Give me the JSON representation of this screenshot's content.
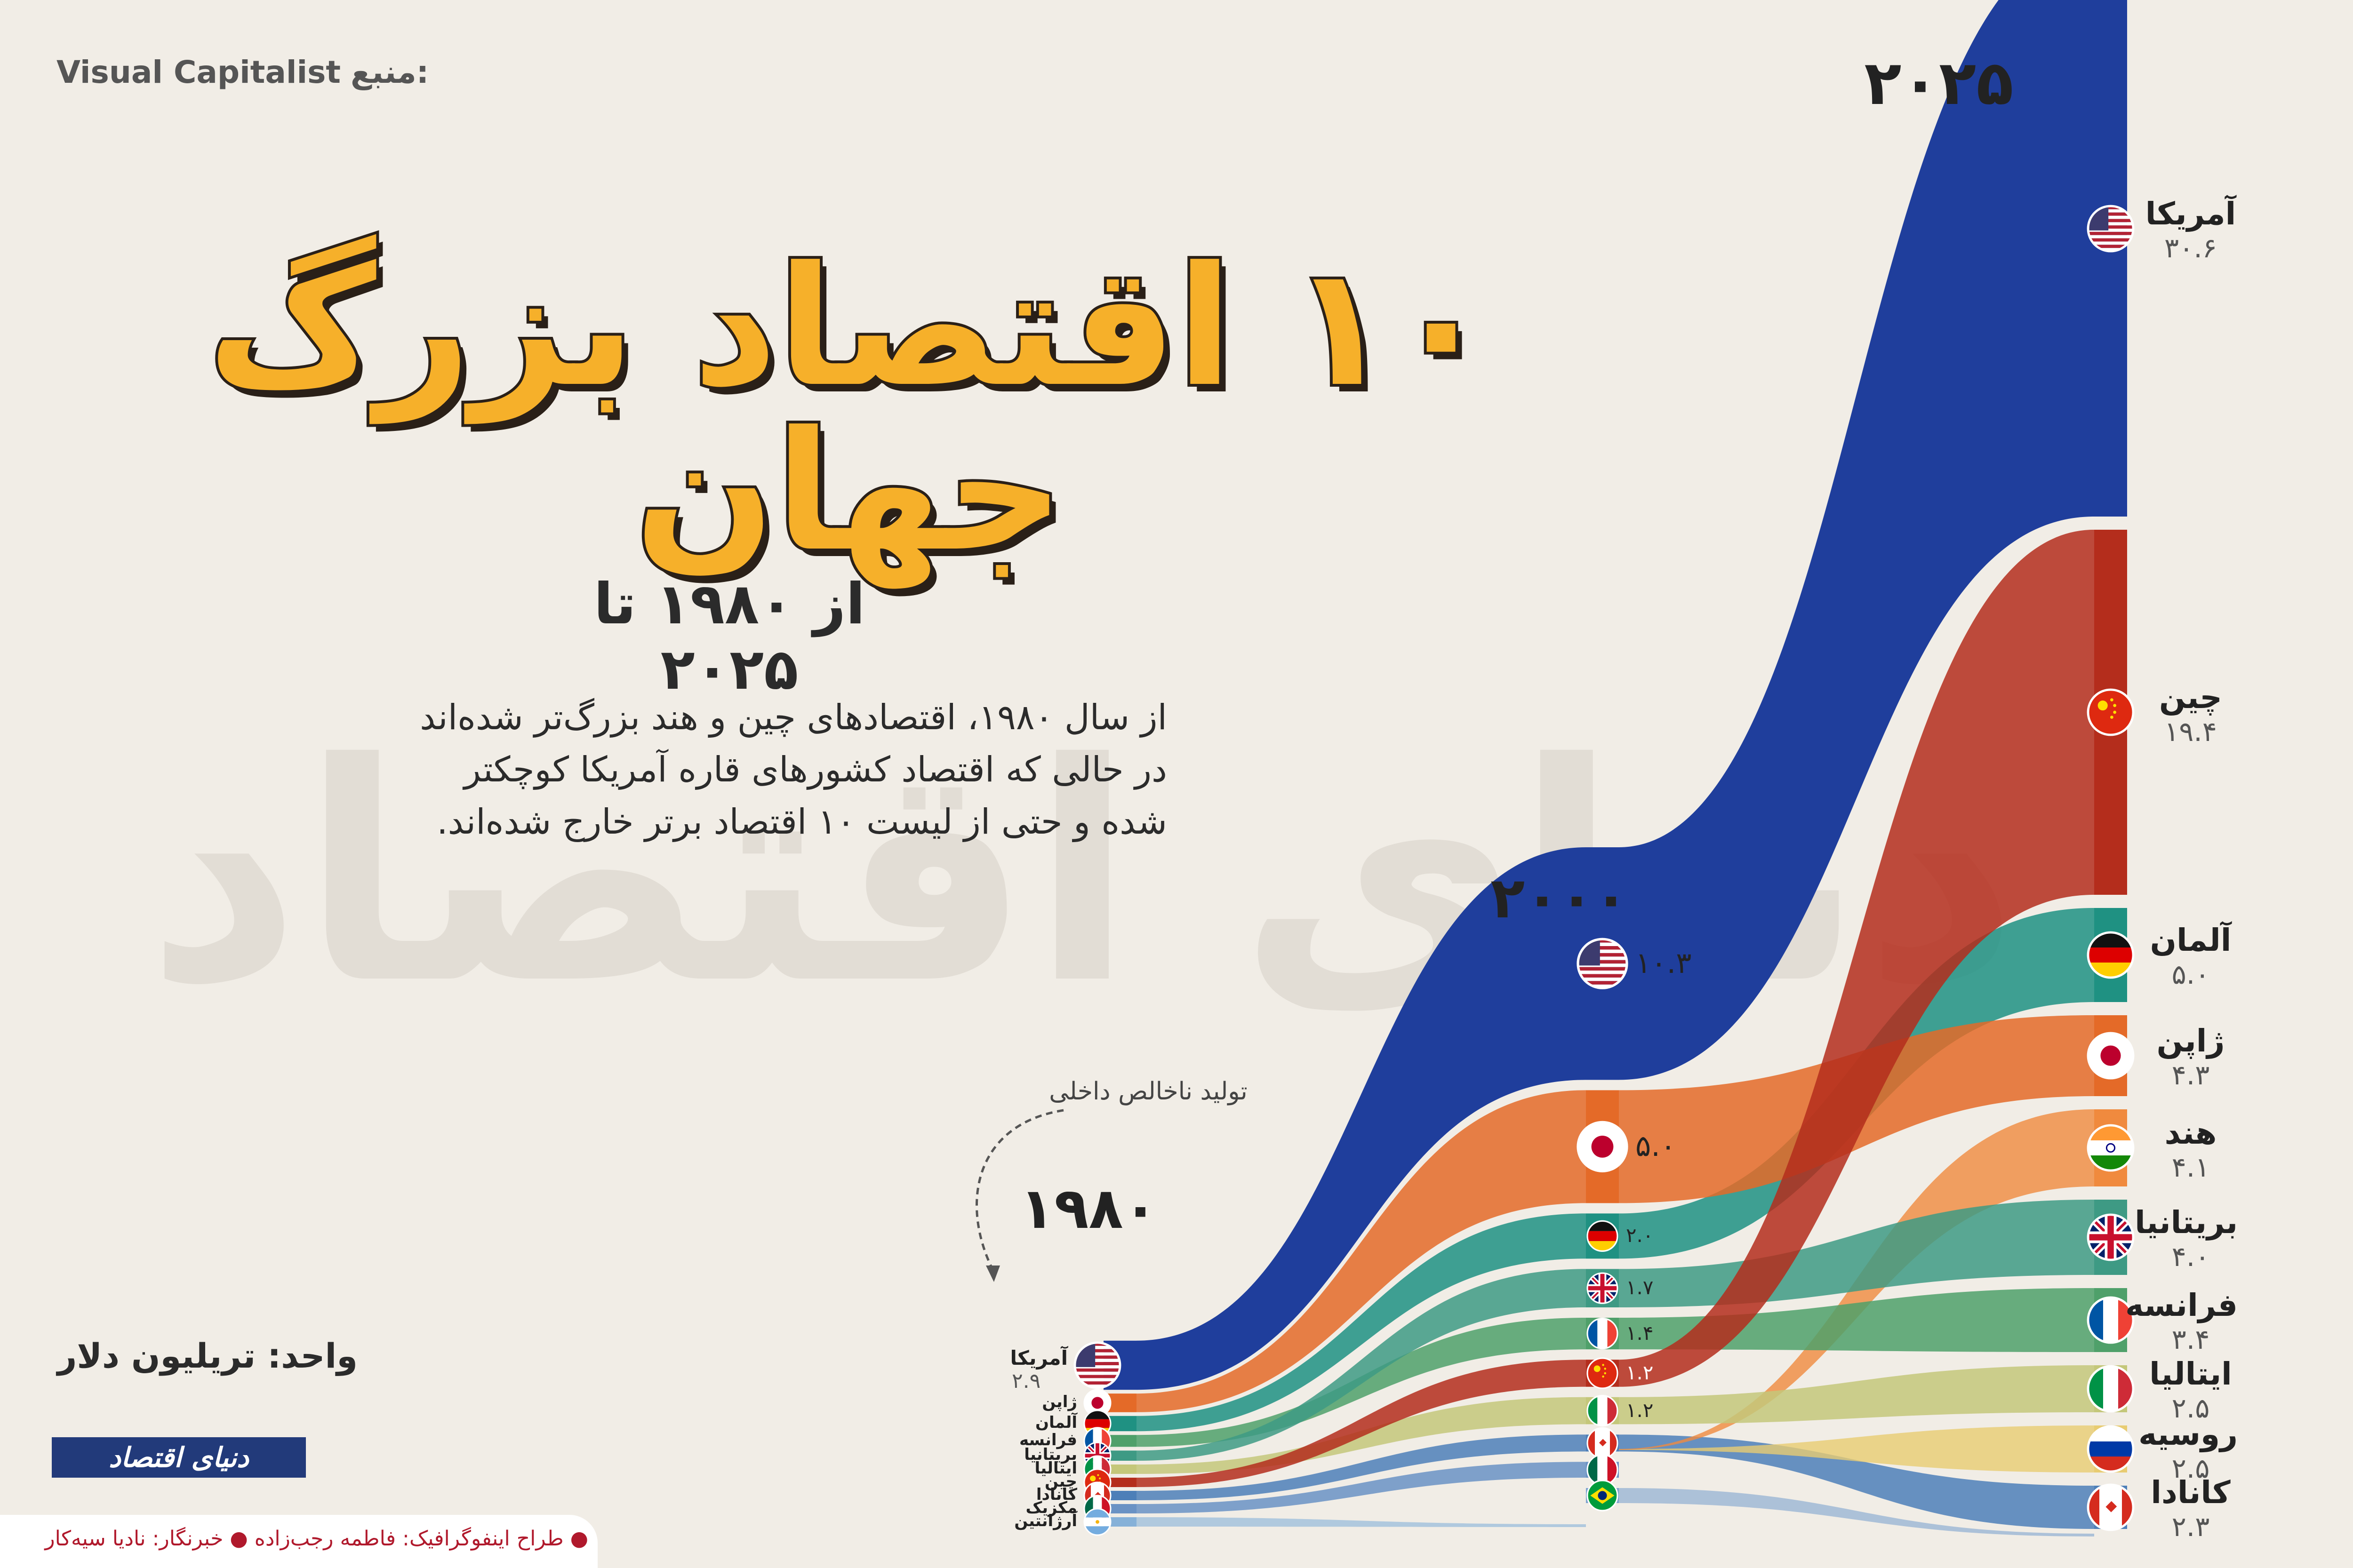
{
  "source": {
    "prefix": "منبع:",
    "name": "Visual Capitalist"
  },
  "title": "۱۰ اقتصاد بزرگ جهان",
  "subtitle": "از ۱۹۸۰ تا ۲۰۲۵",
  "description": [
    "از سال ۱۹۸۰، اقتصادهای چین و هند بزرگ‌تر شده‌اند",
    "در حالی که اقتصاد کشورهای قاره آمریکا کوچکتر",
    "شده و حتی از لیست ۱۰ اقتصاد برتر خارج شده‌اند."
  ],
  "unit": "واحد: تریلیون دلار",
  "gdp_annotation": "تولید ناخالص داخلی",
  "logo": "دنیای اقتصاد",
  "credits": "● طراح اینفوگرافیک: فاطمه رجب‌زاده  ● خبرنگار: نادیا سیه‌کار",
  "chart_data": {
    "type": "area",
    "title": "۱۰ اقتصاد بزرگ جهان",
    "unit": "تریلیون دلار",
    "years": [
      "۱۹۸۰",
      "۲۰۰۰",
      "۲۰۲۵"
    ],
    "series": [
      {
        "name": "آمریکا",
        "key": "us",
        "color": "#1f3e9c",
        "gdp_1980": 2.9,
        "gdp_2000": 10.3,
        "gdp_2025": 30.6,
        "rank_1980": 1,
        "rank_2000": 1,
        "rank_2025": 1,
        "label_1980": "۲.۹",
        "label_2000": "۱۰.۳",
        "label_2025": "۳۰.۶"
      },
      {
        "name": "ژاپن",
        "key": "jp",
        "color": "#e46a28",
        "gdp_1980": 1.1,
        "gdp_2000": 5.0,
        "gdp_2025": 4.3,
        "rank_1980": 2,
        "rank_2000": 2,
        "rank_2025": 4,
        "label_2000": "۵.۰",
        "label_2025": "۴.۳"
      },
      {
        "name": "آلمان",
        "key": "de",
        "color": "#1f9182",
        "gdp_1980": 0.9,
        "gdp_2000": 2.0,
        "gdp_2025": 5.0,
        "rank_1980": 3,
        "rank_2000": 3,
        "rank_2025": 3,
        "label_2000": "۲.۰",
        "label_2025": "۵.۰"
      },
      {
        "name": "فرانسه",
        "key": "fr",
        "color": "#4fa06a",
        "gdp_1980": 0.7,
        "gdp_2000": 1.4,
        "gdp_2025": 3.4,
        "rank_1980": 4,
        "rank_2000": 5,
        "rank_2025": 7,
        "label_2000": "۱.۴",
        "label_2025": "۳.۴"
      },
      {
        "name": "بریتانیا",
        "key": "gb",
        "color": "#3e9a84",
        "gdp_1980": 0.6,
        "gdp_2000": 1.7,
        "gdp_2025": 4.0,
        "rank_1980": 5,
        "rank_2000": 4,
        "rank_2025": 6,
        "label_2000": "۱.۷",
        "label_2025": "۴.۰"
      },
      {
        "name": "ایتالیا",
        "key": "it",
        "color": "#c4c77a",
        "gdp_1980": 0.5,
        "gdp_2000": 1.2,
        "gdp_2025": 2.5,
        "rank_1980": 6,
        "rank_2000": 7,
        "rank_2025": 8,
        "label_2000": "۱.۲",
        "label_2025": "۲.۵"
      },
      {
        "name": "چین",
        "key": "cn",
        "color": "#b42d1c",
        "gdp_1980": 0.3,
        "gdp_2000": 1.2,
        "gdp_2025": 19.4,
        "rank_1980": 7,
        "rank_2000": 6,
        "rank_2025": 2,
        "label_2000": "۱.۲",
        "label_2025": "۱۹.۴"
      },
      {
        "name": "کانادا",
        "key": "ca",
        "color": "#4d7fb8",
        "gdp_1980": 0.28,
        "gdp_2000": 0.75,
        "gdp_2025": 2.3,
        "rank_1980": 8,
        "rank_2000": 8,
        "rank_2025": 10,
        "label_2025": "۲.۳"
      },
      {
        "name": "مکزیک",
        "key": "mx",
        "color": "#6a92c4",
        "gdp_1980": 0.23,
        "gdp_2000": 0.7,
        "rank_1980": 9,
        "rank_2000": 9
      },
      {
        "name": "آرژانتین",
        "key": "ar",
        "color": "#86b1d8",
        "gdp_1980": 0.2,
        "rank_1980": 10
      },
      {
        "name": "برزیل",
        "key": "br",
        "color": "#7fa3cf",
        "gdp_2000": 0.65,
        "rank_2000": 10
      },
      {
        "name": "هند",
        "key": "in",
        "color": "#f08a3e",
        "gdp_2025": 4.1,
        "rank_2025": 5,
        "label_2025": "۴.۱"
      },
      {
        "name": "روسیه",
        "key": "ru",
        "color": "#e8cc72",
        "gdp_2025": 2.5,
        "rank_2025": 9,
        "label_2025": "۲.۵"
      }
    ]
  }
}
